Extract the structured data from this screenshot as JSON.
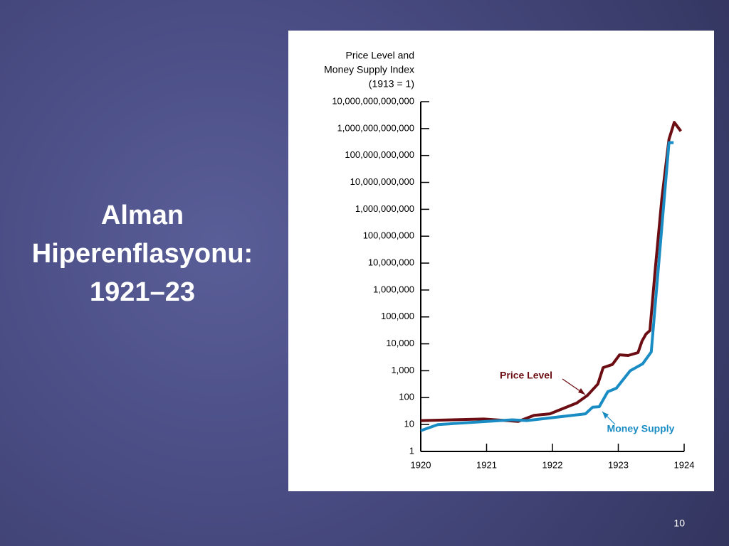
{
  "slide": {
    "title": [
      "Alman",
      "Hiperenflasyonu:",
      "1921–23"
    ],
    "page_number": "10"
  },
  "chart_data": {
    "type": "line",
    "ylabel": [
      "Price Level and",
      "Money Supply Index",
      "(1913 = 1)"
    ],
    "log_scale_y": true,
    "xlim": [
      1920,
      1924
    ],
    "xticks": [
      1920,
      1921,
      1922,
      1923,
      1924
    ],
    "ylim": [
      1,
      10000000000000
    ],
    "yticks": [
      1,
      10,
      100,
      {
        "value": 1000,
        "label": "1,000"
      },
      {
        "value": 10000,
        "label": "10,000"
      },
      {
        "value": 100000,
        "label": "100,000"
      },
      {
        "value": 1000000,
        "label": "1,000,000"
      },
      {
        "value": 10000000,
        "label": "10,000,000"
      },
      {
        "value": 100000000,
        "label": "100,000,000"
      },
      {
        "value": 1000000000,
        "label": "1,000,000,000"
      },
      {
        "value": 10000000000,
        "label": "10,000,000,000"
      },
      {
        "value": 100000000000,
        "label": "100,000,000,000"
      },
      {
        "value": 1000000000000,
        "label": "1,000,000,000,000"
      },
      {
        "value": 10000000000000,
        "label": "10,000,000,000,000"
      }
    ],
    "series": [
      {
        "name": "Price Level",
        "color": "#6b0d12",
        "x": [
          1920.0,
          1920.96,
          1921.48,
          1921.72,
          1921.96,
          1922.37,
          1922.53,
          1922.69,
          1922.77,
          1922.91,
          1923.02,
          1923.15,
          1923.3,
          1923.36,
          1923.42,
          1923.48,
          1923.56,
          1923.66,
          1923.77,
          1923.85,
          1923.95
        ],
        "values": [
          14,
          16,
          13,
          22,
          25,
          63,
          120,
          320,
          1300,
          1700,
          3900,
          3700,
          4700,
          12600,
          23000,
          31000,
          5500000,
          2400000000,
          400000000000,
          1700000000000,
          800000000000
        ]
      },
      {
        "name": "Money Supply",
        "color": "#1a8cc4",
        "x": [
          1920.0,
          1920.26,
          1921.39,
          1921.61,
          1922.5,
          1922.61,
          1922.71,
          1922.84,
          1922.97,
          1923.18,
          1923.37,
          1923.5,
          1923.77,
          1923.84
        ],
        "values": [
          5.9,
          10,
          15,
          14,
          25,
          44,
          46,
          166,
          224,
          1000,
          1800,
          5000,
          300000000000,
          300000000000
        ]
      }
    ]
  }
}
